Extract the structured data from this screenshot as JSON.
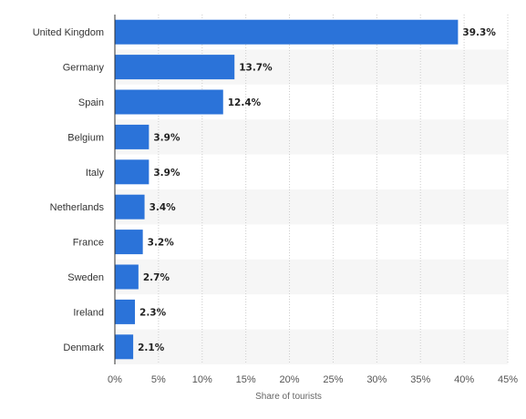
{
  "chart_data": {
    "type": "bar",
    "orientation": "horizontal",
    "title": "",
    "xlabel": "Share of tourists",
    "ylabel": "",
    "xlim": [
      0,
      45
    ],
    "x_ticks": [
      0,
      5,
      10,
      15,
      20,
      25,
      30,
      35,
      40,
      45
    ],
    "x_tick_labels": [
      "0%",
      "5%",
      "10%",
      "15%",
      "20%",
      "25%",
      "30%",
      "35%",
      "40%",
      "45%"
    ],
    "grid": "vertical dotted",
    "categories": [
      "United Kingdom",
      "Germany",
      "Spain",
      "Belgium",
      "Italy",
      "Netherlands",
      "France",
      "Sweden",
      "Ireland",
      "Denmark"
    ],
    "values": [
      39.3,
      13.7,
      12.4,
      3.9,
      3.9,
      3.4,
      3.2,
      2.7,
      2.3,
      2.1
    ],
    "value_labels": [
      "39.3%",
      "13.7%",
      "12.4%",
      "3.9%",
      "3.9%",
      "3.4%",
      "3.2%",
      "2.7%",
      "2.3%",
      "2.1%"
    ],
    "colors": {
      "bar": "#2b73d9",
      "band": "#f6f6f6",
      "grid": "#cccccc",
      "axis": "#333333"
    }
  }
}
